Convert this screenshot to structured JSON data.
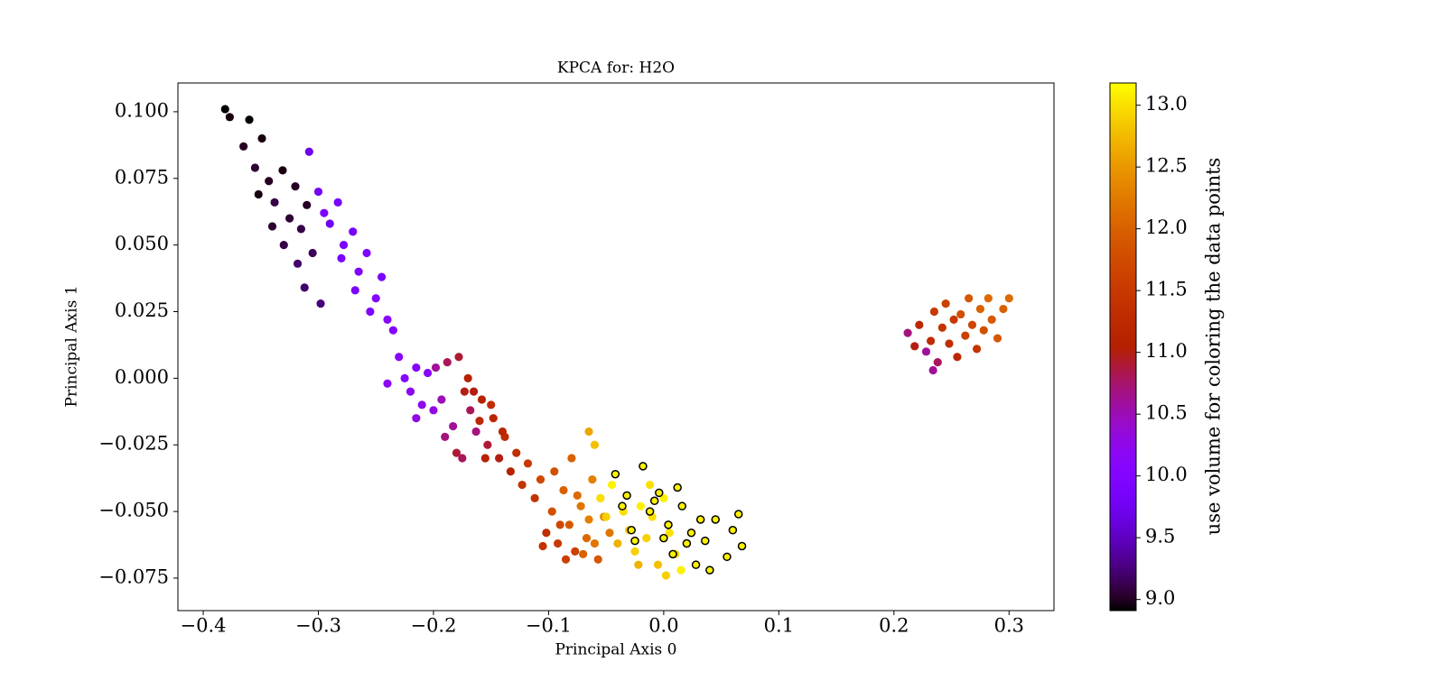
{
  "chart_data": {
    "type": "scatter",
    "title": "KPCA for: H2O",
    "x_label": "Principal Axis 0",
    "y_label": "Principal Axis 1",
    "colorbar_label": "use volume for coloring the data points",
    "colormap": "gnuplot",
    "xlim": [
      -0.422,
      0.339
    ],
    "ylim": [
      -0.0872,
      0.1108
    ],
    "clim": [
      8.91,
      13.18
    ],
    "xticks": [
      {
        "value": -0.4,
        "label": "−0.4"
      },
      {
        "value": -0.3,
        "label": "−0.3"
      },
      {
        "value": -0.2,
        "label": "−0.2"
      },
      {
        "value": -0.1,
        "label": "−0.1"
      },
      {
        "value": 0,
        "label": "0.0"
      },
      0.1,
      0.2,
      0.3
    ],
    "yticks": [
      {
        "value": -0.075,
        "label": "−0.075"
      },
      {
        "value": -0.05,
        "label": "−0.050"
      },
      {
        "value": -0.025,
        "label": "−0.025"
      },
      {
        "value": 0,
        "label": "0.000"
      },
      0.025,
      {
        "value": 0.05,
        "label": "0.050"
      },
      0.075,
      {
        "value": 0.1,
        "label": "0.100"
      }
    ],
    "cticks": [
      {
        "value": 9,
        "label": "9.0"
      },
      9.5,
      {
        "value": 10,
        "label": "10.0"
      },
      10.5,
      {
        "value": 11,
        "label": "11.0"
      },
      11.5,
      {
        "value": 12,
        "label": "12.0"
      },
      12.5,
      {
        "value": 13,
        "label": "13.0"
      }
    ],
    "series": [
      {
        "x": [
          -0.381,
          -0.377,
          -0.365,
          -0.36,
          -0.355,
          -0.349,
          -0.343,
          -0.338,
          -0.331,
          -0.325,
          -0.32,
          -0.315,
          -0.31,
          -0.34,
          -0.352,
          -0.33,
          -0.318,
          -0.305,
          -0.312,
          -0.298,
          -0.308,
          -0.3,
          -0.295,
          -0.29,
          -0.283,
          -0.278,
          -0.27,
          -0.265,
          -0.258,
          -0.25,
          -0.245,
          -0.24,
          -0.235,
          -0.23,
          -0.225,
          -0.22,
          -0.215,
          -0.21,
          -0.205,
          -0.2,
          -0.255,
          -0.268,
          -0.28,
          -0.24,
          -0.215,
          -0.198,
          -0.193,
          -0.188,
          -0.183,
          -0.178,
          -0.173,
          -0.168,
          -0.163,
          -0.158,
          -0.153,
          -0.148,
          -0.143,
          -0.138,
          -0.133,
          -0.128,
          -0.123,
          -0.19,
          -0.18,
          -0.17,
          -0.16,
          -0.15,
          -0.14,
          -0.175,
          -0.165,
          -0.155,
          -0.118,
          -0.112,
          -0.107,
          -0.102,
          -0.097,
          -0.092,
          -0.087,
          -0.082,
          -0.077,
          -0.072,
          -0.067,
          -0.062,
          -0.057,
          -0.052,
          -0.047,
          -0.105,
          -0.095,
          -0.085,
          -0.075,
          -0.065,
          -0.055,
          -0.09,
          -0.08,
          -0.07,
          -0.06,
          -0.06,
          -0.055,
          -0.05,
          -0.045,
          -0.04,
          -0.035,
          -0.03,
          -0.025,
          -0.02,
          -0.015,
          -0.01,
          -0.005,
          0.0,
          0.005,
          0.01,
          0.015,
          -0.022,
          -0.012,
          0.002,
          -0.065,
          0.212,
          0.218,
          0.222,
          0.228,
          0.232,
          0.235,
          0.238,
          0.242,
          0.245,
          0.248,
          0.252,
          0.255,
          0.258,
          0.262,
          0.265,
          0.268,
          0.272,
          0.275,
          0.278,
          0.282,
          0.285,
          0.29,
          0.295,
          0.3,
          0.234
        ],
        "y": [
          0.101,
          0.098,
          0.087,
          0.097,
          0.079,
          0.09,
          0.074,
          0.066,
          0.078,
          0.06,
          0.072,
          0.056,
          0.065,
          0.057,
          0.069,
          0.05,
          0.043,
          0.047,
          0.034,
          0.028,
          0.085,
          0.07,
          0.062,
          0.058,
          0.066,
          0.05,
          0.055,
          0.04,
          0.047,
          0.03,
          0.038,
          0.022,
          0.018,
          0.008,
          0.0,
          -0.005,
          0.004,
          -0.01,
          0.002,
          -0.012,
          0.025,
          0.033,
          0.045,
          -0.002,
          -0.015,
          0.004,
          -0.008,
          0.006,
          -0.018,
          0.008,
          -0.005,
          -0.012,
          -0.02,
          -0.008,
          -0.025,
          -0.015,
          -0.03,
          -0.022,
          -0.035,
          -0.028,
          -0.04,
          -0.022,
          -0.028,
          0.0,
          -0.016,
          -0.01,
          -0.02,
          -0.03,
          -0.005,
          -0.03,
          -0.032,
          -0.045,
          -0.038,
          -0.058,
          -0.05,
          -0.062,
          -0.042,
          -0.055,
          -0.065,
          -0.048,
          -0.06,
          -0.038,
          -0.068,
          -0.052,
          -0.058,
          -0.063,
          -0.035,
          -0.068,
          -0.044,
          -0.053,
          -0.045,
          -0.055,
          -0.03,
          -0.066,
          -0.062,
          -0.025,
          -0.045,
          -0.052,
          -0.04,
          -0.062,
          -0.05,
          -0.057,
          -0.065,
          -0.048,
          -0.06,
          -0.052,
          -0.07,
          -0.045,
          -0.058,
          -0.066,
          -0.072,
          -0.07,
          -0.04,
          -0.074,
          -0.02,
          0.017,
          0.012,
          0.02,
          0.01,
          0.014,
          0.025,
          0.006,
          0.019,
          0.028,
          0.013,
          0.022,
          0.008,
          0.024,
          0.016,
          0.03,
          0.02,
          0.011,
          0.026,
          0.018,
          0.03,
          0.022,
          0.015,
          0.026,
          0.03,
          0.003
        ],
        "c": [
          8.9,
          8.95,
          9.0,
          8.9,
          9.05,
          8.95,
          9.0,
          9.1,
          8.95,
          9.05,
          9.0,
          9.1,
          9.0,
          9.05,
          8.95,
          9.1,
          9.2,
          9.15,
          9.2,
          9.25,
          9.7,
          9.8,
          9.9,
          9.75,
          9.85,
          9.9,
          9.8,
          10.0,
          9.95,
          10.05,
          9.9,
          10.1,
          10.0,
          10.15,
          10.1,
          10.2,
          10.05,
          10.25,
          10.15,
          10.3,
          9.95,
          9.9,
          9.85,
          10.2,
          10.3,
          10.6,
          10.5,
          10.8,
          10.6,
          10.9,
          11.0,
          10.8,
          10.7,
          11.1,
          10.9,
          11.2,
          11.0,
          11.3,
          11.1,
          11.3,
          11.4,
          10.7,
          10.9,
          11.1,
          11.2,
          11.3,
          11.2,
          10.8,
          11.0,
          11.1,
          11.5,
          11.4,
          11.7,
          11.3,
          11.8,
          11.5,
          12.0,
          11.9,
          11.6,
          12.2,
          12.1,
          12.3,
          11.9,
          12.4,
          12.2,
          11.4,
          11.8,
          11.6,
          12.1,
          12.3,
          12.4,
          11.7,
          12.0,
          12.0,
          12.2,
          12.8,
          13.0,
          12.9,
          13.1,
          12.7,
          13.0,
          12.8,
          12.9,
          13.1,
          12.9,
          13.0,
          12.8,
          13.1,
          13.0,
          12.9,
          13.1,
          12.7,
          13.0,
          12.9,
          12.6,
          10.7,
          11.0,
          11.2,
          10.6,
          11.3,
          11.5,
          10.8,
          11.4,
          11.6,
          11.3,
          11.5,
          11.2,
          11.8,
          11.6,
          11.9,
          11.7,
          11.4,
          12.0,
          11.8,
          12.1,
          11.9,
          11.9,
          12.0,
          12.1,
          10.6
        ]
      },
      {
        "edgecolor": "#000000",
        "x": [
          -0.042,
          -0.036,
          -0.032,
          -0.028,
          -0.025,
          -0.018,
          -0.012,
          -0.008,
          -0.004,
          0.0,
          0.004,
          0.008,
          0.012,
          0.016,
          0.02,
          0.024,
          0.028,
          0.032,
          0.036,
          0.04,
          0.045,
          0.055,
          0.06,
          0.065,
          0.068
        ],
        "y": [
          -0.036,
          -0.048,
          -0.044,
          -0.057,
          -0.061,
          -0.033,
          -0.05,
          -0.046,
          -0.043,
          -0.06,
          -0.055,
          -0.066,
          -0.041,
          -0.048,
          -0.062,
          -0.058,
          -0.07,
          -0.053,
          -0.061,
          -0.072,
          -0.053,
          -0.067,
          -0.057,
          -0.051,
          -0.063
        ],
        "c": [
          13.1,
          13.1,
          13.1,
          13.1,
          13.1,
          13.1,
          13.1,
          13.1,
          13.1,
          13.1,
          13.1,
          13.1,
          13.1,
          13.1,
          13.1,
          13.1,
          13.1,
          13.1,
          13.1,
          13.1,
          13.1,
          13.1,
          13.1,
          13.1,
          13.1
        ]
      }
    ]
  }
}
